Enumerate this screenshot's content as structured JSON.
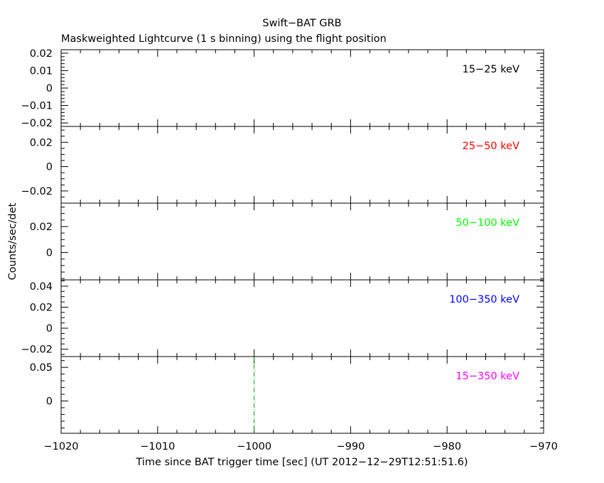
{
  "chart_data": {
    "type": "line",
    "title": "Swift−BAT GRB",
    "subtitle": "Maskweighted Lightcurve (1 s binning) using the flight position",
    "xlabel": "Time since BAT trigger time [sec] (UT 2012−12−29T12:51:51.6)",
    "ylabel": "Counts/sec/det",
    "xlim": [
      -1020,
      -970
    ],
    "x_ticks": [
      -1020,
      -1010,
      -1000,
      -990,
      -980,
      -970
    ],
    "x_tick_labels": [
      "−1020",
      "−1010",
      "−1000",
      "−990",
      "−980",
      "−970"
    ],
    "trigger_marker_x": -1000,
    "panels": [
      {
        "band": "15−25 keV",
        "color": "#000000",
        "ylim": [
          -0.022,
          0.022
        ],
        "y_ticks": [
          -0.02,
          -0.01,
          0,
          0.01,
          0.02
        ],
        "y_tick_labels": [
          "−0.02",
          "−0.01",
          "0",
          "0.01",
          "0.02"
        ],
        "minor_step": 0.002,
        "series": []
      },
      {
        "band": "25−50 keV",
        "color": "#ff0000",
        "ylim": [
          -0.03,
          0.033
        ],
        "y_ticks": [
          -0.02,
          0,
          0.02
        ],
        "y_tick_labels": [
          "−0.02",
          "0",
          "0.02"
        ],
        "minor_step": 0.005,
        "series": []
      },
      {
        "band": "50−100 keV",
        "color": "#00ff00",
        "ylim": [
          -0.021,
          0.038
        ],
        "y_ticks": [
          0,
          0.02
        ],
        "y_tick_labels": [
          "0",
          "0.02"
        ],
        "minor_step": 0.005,
        "series": []
      },
      {
        "band": "100−350 keV",
        "color": "#0000ff",
        "ylim": [
          -0.027,
          0.046
        ],
        "y_ticks": [
          -0.02,
          0,
          0.02,
          0.04
        ],
        "y_tick_labels": [
          "−0.02",
          "0",
          "0.02",
          "0.04"
        ],
        "minor_step": 0.005,
        "series": []
      },
      {
        "band": "15−350 keV",
        "color": "#ff00ff",
        "ylim": [
          -0.048,
          0.066
        ],
        "y_ticks": [
          0,
          0.05
        ],
        "y_tick_labels": [
          "0",
          "0.05"
        ],
        "minor_step": 0.01,
        "series": []
      }
    ]
  }
}
